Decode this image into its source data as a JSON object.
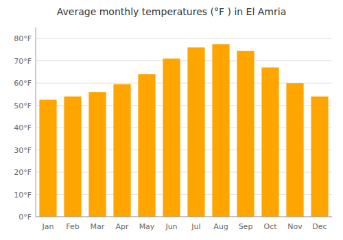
{
  "chart_data": {
    "type": "bar",
    "title": "Average monthly temperatures (°F ) in El Amria",
    "categories": [
      "Jan",
      "Feb",
      "Mar",
      "Apr",
      "May",
      "Jun",
      "Jul",
      "Aug",
      "Sep",
      "Oct",
      "Nov",
      "Dec"
    ],
    "values": [
      52.5,
      54,
      56,
      59.5,
      64,
      71,
      76,
      77.5,
      74.5,
      67,
      60,
      54
    ],
    "color": "#FFA500",
    "ylim": [
      0,
      85
    ],
    "yticks": [
      {
        "value": 0,
        "label": "0°F"
      },
      {
        "value": 10,
        "label": "10°F"
      },
      {
        "value": 20,
        "label": "20°F"
      },
      {
        "value": 30,
        "label": "30°F"
      },
      {
        "value": 40,
        "label": "40°F"
      },
      {
        "value": 50,
        "label": "50°F"
      },
      {
        "value": 60,
        "label": "60°F"
      },
      {
        "value": 70,
        "label": "70°F"
      },
      {
        "value": 80,
        "label": "80°F"
      }
    ],
    "grid": true
  }
}
